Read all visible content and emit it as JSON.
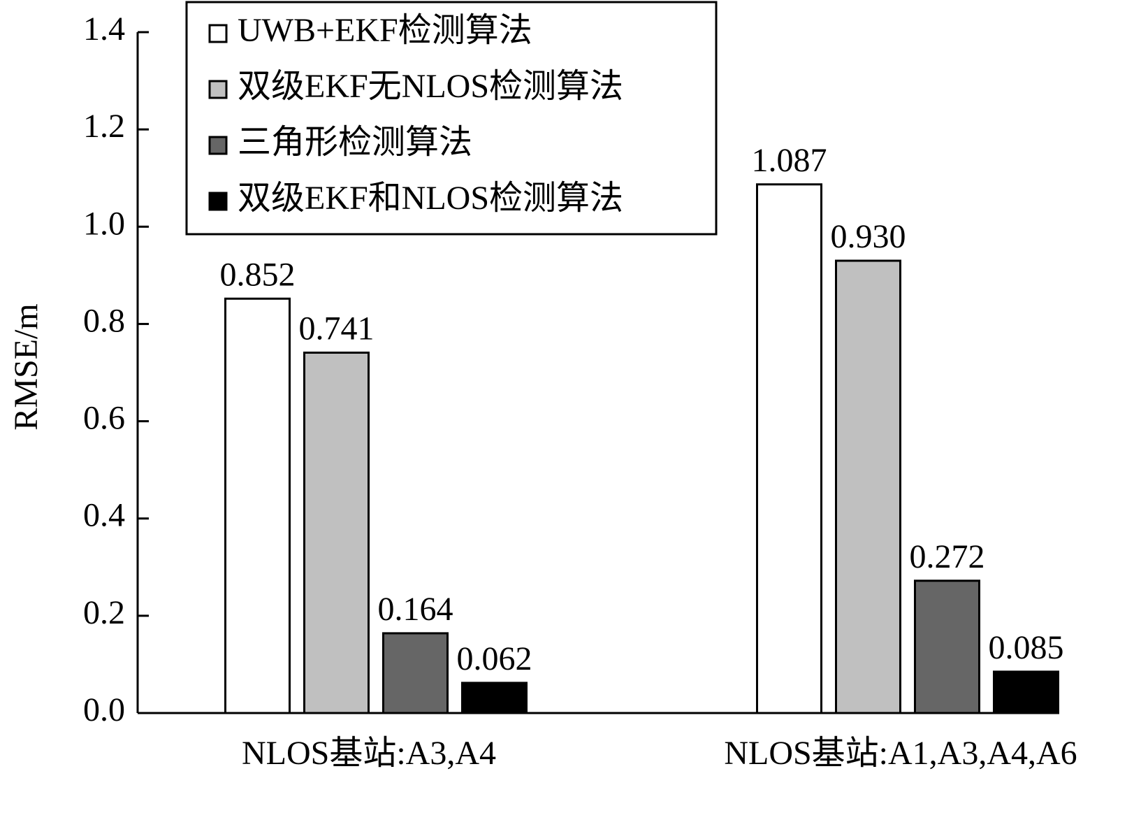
{
  "chart_data": {
    "type": "bar",
    "y_label": "RMSE/m",
    "categories": [
      "NLOS基站:A3,A4",
      "NLOS基站:A1,A3,A4,A6"
    ],
    "series": [
      {
        "name": "UWB+EKF检测算法",
        "color": "#ffffff",
        "values": [
          0.852,
          1.087
        ],
        "value_labels": [
          "0.852",
          "1.087"
        ]
      },
      {
        "name": "双级EKF无NLOS检测算法",
        "color": "#c0c0c0",
        "values": [
          0.741,
          0.93
        ],
        "value_labels": [
          "0.741",
          "0.930"
        ]
      },
      {
        "name": "三角形检测算法",
        "color": "#666666",
        "values": [
          0.164,
          0.272
        ],
        "value_labels": [
          "0.164",
          "0.272"
        ]
      },
      {
        "name": "双级EKF和NLOS检测算法",
        "color": "#000000",
        "values": [
          0.062,
          0.085
        ],
        "value_labels": [
          "0.062",
          "0.085"
        ]
      }
    ],
    "ylim": [
      0,
      1.4
    ],
    "yticks": [
      {
        "value": 0,
        "label": "0.0"
      },
      0.2,
      0.4,
      0.6,
      0.8,
      {
        "value": 1,
        "label": "1.0"
      },
      1.2,
      1.4
    ],
    "legend": "upper-left"
  }
}
